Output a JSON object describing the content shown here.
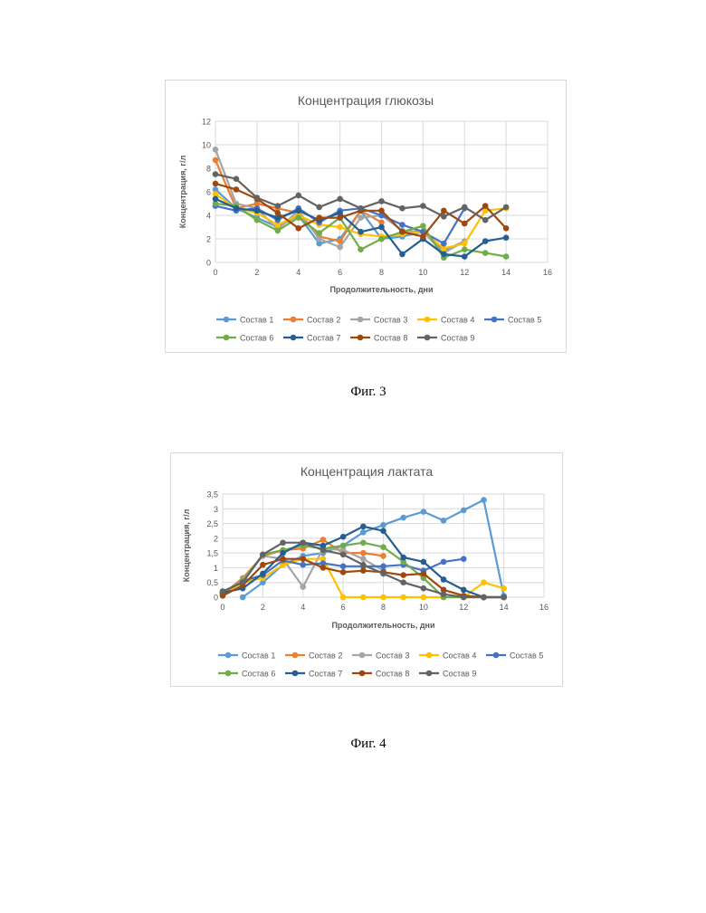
{
  "figures": [
    {
      "caption": "Фиг. 3",
      "chart_data": {
        "type": "line",
        "title": "Концентрация глюкозы",
        "xlabel": "Продолжительность, дни",
        "ylabel": "Концентрация, г/л",
        "xlim": [
          0,
          16
        ],
        "ylim": [
          0,
          12
        ],
        "xticks": [
          "0",
          "2",
          "4",
          "6",
          "8",
          "10",
          "12",
          "14",
          "16"
        ],
        "yticks": [
          "0",
          "2",
          "4",
          "6",
          "8",
          "10",
          "12"
        ],
        "grid": true,
        "legend_position": "bottom",
        "x": [
          0,
          1,
          2,
          3,
          4,
          5,
          6,
          7,
          8,
          9,
          10,
          11,
          12,
          13,
          14
        ],
        "series": [
          {
            "name": "Состав 1",
            "color": "#5B9BD5",
            "y": [
              6.2,
              4.6,
              3.8,
              3.0,
              4.0,
              1.6,
              2.0,
              4.4,
              2.0,
              2.2,
              2.6,
              1.0,
              1.8,
              null,
              null
            ]
          },
          {
            "name": "Состав 2",
            "color": "#ED7D31",
            "y": [
              8.7,
              4.6,
              5.0,
              4.6,
              4.2,
              2.2,
              1.8,
              4.4,
              3.4,
              null,
              null,
              null,
              null,
              null,
              null
            ]
          },
          {
            "name": "Состав 3",
            "color": "#A5A5A5",
            "y": [
              9.6,
              5.0,
              4.6,
              2.8,
              4.4,
              2.0,
              1.3,
              3.8,
              4.0,
              2.7,
              2.6,
              0.8,
              1.8,
              null,
              null
            ]
          },
          {
            "name": "Состав 4",
            "color": "#FFC000",
            "y": [
              5.8,
              4.6,
              4.2,
              3.2,
              4.0,
              3.2,
              3.0,
              2.4,
              2.2,
              2.4,
              2.6,
              1.2,
              1.6,
              4.4,
              4.6
            ]
          },
          {
            "name": "Состав 5",
            "color": "#4472C4",
            "y": [
              4.8,
              4.4,
              4.6,
              3.6,
              4.6,
              3.4,
              4.4,
              4.6,
              4.0,
              3.2,
              2.6,
              1.6,
              4.6,
              null,
              null
            ]
          },
          {
            "name": "Состав 6",
            "color": "#70AD47",
            "y": [
              5.0,
              4.8,
              3.6,
              2.7,
              3.8,
              2.5,
              3.8,
              1.1,
              2.0,
              2.6,
              3.1,
              0.4,
              1.1,
              0.8,
              0.5
            ]
          },
          {
            "name": "Состав 7",
            "color": "#255E91",
            "y": [
              5.4,
              4.6,
              4.4,
              3.8,
              4.4,
              3.6,
              4.2,
              2.6,
              3.0,
              0.7,
              2.0,
              0.7,
              0.5,
              1.8,
              2.1
            ]
          },
          {
            "name": "Состав 8",
            "color": "#9E480E",
            "y": [
              6.7,
              6.2,
              5.4,
              4.2,
              2.9,
              3.8,
              3.8,
              4.4,
              4.4,
              2.6,
              2.2,
              4.4,
              3.3,
              4.8,
              2.9
            ]
          },
          {
            "name": "Состав 9",
            "color": "#636363",
            "y": [
              7.5,
              7.1,
              5.5,
              4.8,
              5.7,
              4.7,
              5.4,
              4.6,
              5.2,
              4.6,
              4.8,
              3.9,
              4.7,
              3.6,
              4.7
            ]
          }
        ]
      }
    },
    {
      "caption": "Фиг. 4",
      "chart_data": {
        "type": "line",
        "title": "Концентрация лактата",
        "xlabel": "Продолжительность, дни",
        "ylabel": "Концентрация, г/л",
        "xlim": [
          0,
          16
        ],
        "ylim": [
          0,
          3.5
        ],
        "xticks": [
          "0",
          "2",
          "4",
          "6",
          "8",
          "10",
          "12",
          "14",
          "16"
        ],
        "yticks": [
          "0",
          "0,5",
          "1",
          "1,5",
          "2",
          "2,5",
          "3",
          "3,5"
        ],
        "grid": true,
        "legend_position": "bottom",
        "x": [
          0,
          1,
          2,
          3,
          4,
          5,
          6,
          7,
          8,
          9,
          10,
          11,
          12,
          13,
          14
        ],
        "series": [
          {
            "name": "Состав 1",
            "color": "#5B9BD5",
            "y": [
              null,
              0.0,
              0.5,
              1.1,
              1.4,
              1.5,
              1.75,
              2.2,
              2.45,
              2.7,
              2.9,
              2.6,
              2.95,
              3.3,
              0.05
            ]
          },
          {
            "name": "Состав 2",
            "color": "#ED7D31",
            "y": [
              0.1,
              0.65,
              1.4,
              1.6,
              1.65,
              1.95,
              1.5,
              1.5,
              1.4,
              null,
              null,
              null,
              null,
              null,
              null
            ]
          },
          {
            "name": "Состав 3",
            "color": "#A5A5A5",
            "y": [
              0.1,
              0.6,
              1.4,
              1.3,
              0.35,
              1.65,
              1.6,
              1.3,
              0.9,
              null,
              null,
              null,
              null,
              null,
              null
            ]
          },
          {
            "name": "Состав 4",
            "color": "#FFC000",
            "y": [
              0.1,
              0.5,
              0.65,
              1.1,
              1.3,
              1.3,
              0.0,
              0.0,
              0.0,
              0.0,
              0.0,
              0.0,
              0.0,
              0.5,
              0.3
            ]
          },
          {
            "name": "Состав 5",
            "color": "#4472C4",
            "y": [
              0.15,
              0.55,
              0.75,
              1.25,
              1.1,
              1.15,
              1.05,
              1.05,
              1.05,
              1.1,
              0.9,
              1.2,
              1.3,
              null,
              null
            ]
          },
          {
            "name": "Состав 6",
            "color": "#70AD47",
            "y": [
              0.15,
              0.55,
              1.45,
              1.6,
              1.75,
              1.65,
              1.75,
              1.85,
              1.7,
              1.2,
              0.65,
              0.0,
              0.0,
              0.0,
              0.0
            ]
          },
          {
            "name": "Состав 7",
            "color": "#255E91",
            "y": [
              0.15,
              0.3,
              0.8,
              1.5,
              1.85,
              1.75,
              2.05,
              2.4,
              2.25,
              1.35,
              1.2,
              0.6,
              0.25,
              0.0,
              0.0
            ]
          },
          {
            "name": "Состав 8",
            "color": "#9E480E",
            "y": [
              0.05,
              0.4,
              1.1,
              1.3,
              1.3,
              1.0,
              0.85,
              0.9,
              0.85,
              0.75,
              0.8,
              0.25,
              0.05,
              0.0,
              0.0
            ]
          },
          {
            "name": "Состав 9",
            "color": "#636363",
            "y": [
              0.2,
              0.5,
              1.45,
              1.85,
              1.85,
              1.6,
              1.45,
              1.1,
              0.8,
              0.5,
              0.3,
              0.1,
              0.0,
              0.0,
              0.0
            ]
          }
        ]
      }
    }
  ]
}
